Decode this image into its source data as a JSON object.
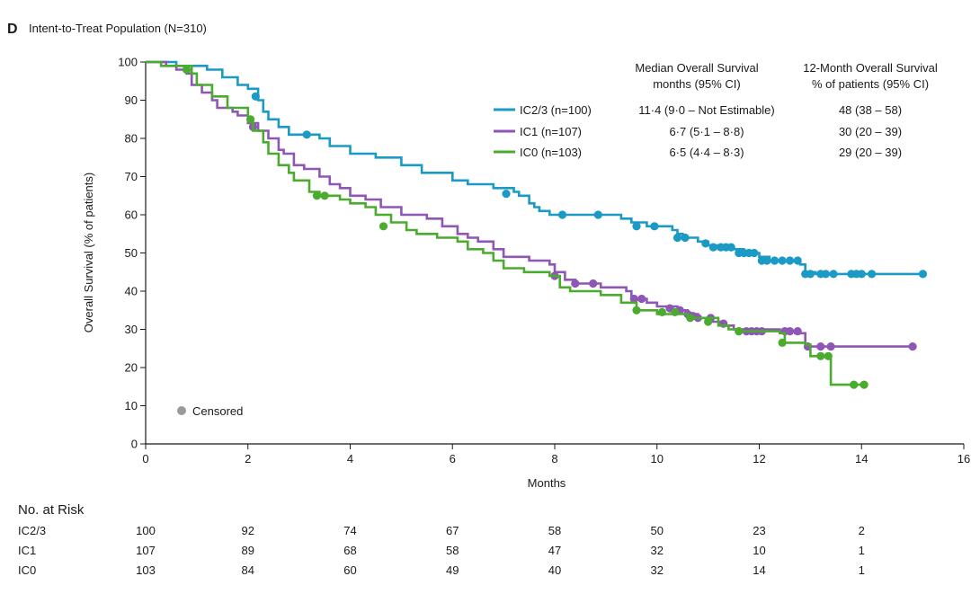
{
  "panel": {
    "letter": "D",
    "title": "Intent-to-Treat Population (N=310)"
  },
  "table_header": {
    "median_line1": "Median Overall Survival",
    "median_line2": "months (95% CI)",
    "twelve_line1": "12-Month Overall Survival",
    "twelve_line2": "% of patients (95% CI)"
  },
  "legend_rows": [
    {
      "label": "IC2/3 (n=100)",
      "median": "11·4 (9·0 – Not Estimable)",
      "twelve": "48 (38 – 58)",
      "color": "#1a9ac4"
    },
    {
      "label": "IC1 (n=107)",
      "median": "6·7 (5·1 – 8·8)",
      "twelve": "30 (20 – 39)",
      "color": "#8e57b5"
    },
    {
      "label": "IC0 (n=103)",
      "median": "6·5 (4·4 – 8·3)",
      "twelve": "29 (20 – 39)",
      "color": "#4bab2f"
    }
  ],
  "censored_label": "Censored",
  "risk_table": {
    "title": "No. at Risk",
    "rows": [
      {
        "label": "IC2/3",
        "values": [
          "100",
          "92",
          "74",
          "67",
          "58",
          "50",
          "23",
          "2"
        ]
      },
      {
        "label": "IC1",
        "values": [
          "107",
          "89",
          "68",
          "58",
          "47",
          "32",
          "10",
          "1"
        ]
      },
      {
        "label": "IC0",
        "values": [
          "103",
          "84",
          "60",
          "49",
          "40",
          "32",
          "14",
          "1"
        ]
      }
    ]
  },
  "chart_data": {
    "type": "line",
    "title": "",
    "xlabel": "Months",
    "ylabel": "Overall Survival (% of patients)",
    "xlim": [
      0,
      16
    ],
    "ylim": [
      0,
      100
    ],
    "x_ticks": [
      0,
      2,
      4,
      6,
      8,
      10,
      12,
      14,
      16
    ],
    "y_ticks": [
      0,
      10,
      20,
      30,
      40,
      50,
      60,
      70,
      80,
      90,
      100
    ],
    "grid": false,
    "legend": "top-right",
    "series": [
      {
        "name": "IC2/3 (n=100)",
        "color": "#1a9ac4",
        "steps": [
          [
            0,
            100
          ],
          [
            0.6,
            99
          ],
          [
            1.2,
            98
          ],
          [
            1.5,
            96
          ],
          [
            1.8,
            94
          ],
          [
            2.0,
            93
          ],
          [
            2.2,
            90
          ],
          [
            2.3,
            87
          ],
          [
            2.4,
            85
          ],
          [
            2.6,
            83
          ],
          [
            2.8,
            81
          ],
          [
            3.4,
            80
          ],
          [
            3.6,
            78
          ],
          [
            4.0,
            76
          ],
          [
            4.5,
            75
          ],
          [
            5.0,
            73
          ],
          [
            5.4,
            71
          ],
          [
            6.0,
            69
          ],
          [
            6.3,
            68
          ],
          [
            6.8,
            67
          ],
          [
            7.2,
            66
          ],
          [
            7.3,
            65
          ],
          [
            7.5,
            63
          ],
          [
            7.6,
            62
          ],
          [
            7.7,
            61
          ],
          [
            7.9,
            60
          ],
          [
            8.9,
            60
          ],
          [
            9.3,
            59
          ],
          [
            9.5,
            58
          ],
          [
            9.8,
            57
          ],
          [
            10.3,
            56
          ],
          [
            10.4,
            55
          ],
          [
            10.5,
            54
          ],
          [
            10.8,
            53
          ],
          [
            11.0,
            52
          ],
          [
            11.2,
            51
          ],
          [
            11.6,
            51
          ],
          [
            11.7,
            50
          ],
          [
            12.0,
            49
          ],
          [
            12.2,
            48
          ],
          [
            12.8,
            47
          ],
          [
            12.9,
            45
          ],
          [
            13.1,
            44.5
          ],
          [
            15.2,
            44.5
          ]
        ],
        "censored": [
          [
            2.15,
            91
          ],
          [
            3.15,
            81
          ],
          [
            7.05,
            65.5
          ],
          [
            8.15,
            60
          ],
          [
            8.85,
            60
          ],
          [
            9.6,
            57
          ],
          [
            9.95,
            57
          ],
          [
            10.4,
            54
          ],
          [
            10.55,
            54
          ],
          [
            10.95,
            52.5
          ],
          [
            11.1,
            51.5
          ],
          [
            11.25,
            51.5
          ],
          [
            11.35,
            51.5
          ],
          [
            11.45,
            51.5
          ],
          [
            11.6,
            50
          ],
          [
            11.7,
            50
          ],
          [
            11.8,
            50
          ],
          [
            11.9,
            50
          ],
          [
            12.05,
            48
          ],
          [
            12.15,
            48
          ],
          [
            12.3,
            48
          ],
          [
            12.45,
            48
          ],
          [
            12.6,
            48
          ],
          [
            12.75,
            48
          ],
          [
            12.9,
            44.5
          ],
          [
            13.0,
            44.5
          ],
          [
            13.2,
            44.5
          ],
          [
            13.3,
            44.5
          ],
          [
            13.45,
            44.5
          ],
          [
            13.8,
            44.5
          ],
          [
            13.9,
            44.5
          ],
          [
            14.0,
            44.5
          ],
          [
            14.2,
            44.5
          ],
          [
            15.2,
            44.5
          ]
        ]
      },
      {
        "name": "IC1 (n=107)",
        "color": "#8e57b5",
        "steps": [
          [
            0,
            100
          ],
          [
            0.4,
            99
          ],
          [
            0.6,
            98
          ],
          [
            0.8,
            97
          ],
          [
            0.9,
            94
          ],
          [
            1.1,
            92
          ],
          [
            1.3,
            90
          ],
          [
            1.4,
            88
          ],
          [
            1.7,
            87
          ],
          [
            1.8,
            86
          ],
          [
            2.0,
            84
          ],
          [
            2.2,
            82
          ],
          [
            2.4,
            80
          ],
          [
            2.6,
            77
          ],
          [
            2.7,
            76
          ],
          [
            2.9,
            73
          ],
          [
            3.1,
            72
          ],
          [
            3.4,
            70
          ],
          [
            3.6,
            68
          ],
          [
            3.8,
            67
          ],
          [
            4.0,
            65
          ],
          [
            4.3,
            64
          ],
          [
            4.6,
            62
          ],
          [
            5.0,
            60
          ],
          [
            5.5,
            59
          ],
          [
            5.8,
            57
          ],
          [
            6.1,
            55
          ],
          [
            6.3,
            54
          ],
          [
            6.5,
            53
          ],
          [
            6.8,
            51
          ],
          [
            7.0,
            49
          ],
          [
            7.5,
            48
          ],
          [
            7.9,
            47
          ],
          [
            8.0,
            45
          ],
          [
            8.2,
            43
          ],
          [
            8.4,
            42
          ],
          [
            8.9,
            41
          ],
          [
            9.4,
            40
          ],
          [
            9.5,
            38
          ],
          [
            9.8,
            37
          ],
          [
            10.0,
            36
          ],
          [
            10.4,
            35
          ],
          [
            10.6,
            34
          ],
          [
            10.8,
            33
          ],
          [
            11.0,
            32
          ],
          [
            11.3,
            31
          ],
          [
            11.5,
            30
          ],
          [
            12.4,
            29.5
          ],
          [
            12.7,
            29
          ],
          [
            12.9,
            25.5
          ],
          [
            15.0,
            25.5
          ]
        ],
        "censored": [
          [
            2.1,
            83
          ],
          [
            8.0,
            44
          ],
          [
            8.4,
            42
          ],
          [
            8.75,
            42
          ],
          [
            9.55,
            38
          ],
          [
            9.7,
            38
          ],
          [
            10.25,
            35.5
          ],
          [
            10.45,
            35
          ],
          [
            10.6,
            34
          ],
          [
            10.7,
            33.5
          ],
          [
            10.8,
            33
          ],
          [
            11.05,
            33
          ],
          [
            11.3,
            31.5
          ],
          [
            11.6,
            29.5
          ],
          [
            11.75,
            29.5
          ],
          [
            11.85,
            29.5
          ],
          [
            11.95,
            29.5
          ],
          [
            12.05,
            29.5
          ],
          [
            12.5,
            29.5
          ],
          [
            12.6,
            29.5
          ],
          [
            12.75,
            29.5
          ],
          [
            12.95,
            25.5
          ],
          [
            13.2,
            25.5
          ],
          [
            13.4,
            25.5
          ],
          [
            15.0,
            25.5
          ]
        ]
      },
      {
        "name": "IC0 (n=103)",
        "color": "#4bab2f",
        "steps": [
          [
            0,
            100
          ],
          [
            0.3,
            99
          ],
          [
            0.9,
            97
          ],
          [
            1.0,
            94
          ],
          [
            1.3,
            91
          ],
          [
            1.6,
            88
          ],
          [
            2.0,
            85
          ],
          [
            2.1,
            82
          ],
          [
            2.3,
            79
          ],
          [
            2.4,
            76
          ],
          [
            2.6,
            73
          ],
          [
            2.8,
            71
          ],
          [
            2.9,
            69
          ],
          [
            3.2,
            66
          ],
          [
            3.4,
            65
          ],
          [
            3.8,
            64
          ],
          [
            4.0,
            63
          ],
          [
            4.3,
            62
          ],
          [
            4.5,
            60
          ],
          [
            4.8,
            58
          ],
          [
            5.1,
            56
          ],
          [
            5.3,
            55
          ],
          [
            5.7,
            54
          ],
          [
            6.1,
            53
          ],
          [
            6.3,
            51
          ],
          [
            6.6,
            50
          ],
          [
            6.8,
            48
          ],
          [
            7.0,
            46
          ],
          [
            7.4,
            45
          ],
          [
            7.9,
            44
          ],
          [
            8.1,
            41
          ],
          [
            8.3,
            40
          ],
          [
            8.9,
            39
          ],
          [
            9.3,
            37
          ],
          [
            9.6,
            35
          ],
          [
            10.0,
            34
          ],
          [
            10.6,
            33
          ],
          [
            11.2,
            31
          ],
          [
            11.4,
            30
          ],
          [
            11.6,
            29.5
          ],
          [
            12.4,
            29
          ],
          [
            12.5,
            26.5
          ],
          [
            12.9,
            26
          ],
          [
            13.0,
            23
          ],
          [
            13.4,
            15.5
          ],
          [
            14.1,
            15.5
          ]
        ],
        "censored": [
          [
            0.8,
            98
          ],
          [
            2.05,
            85
          ],
          [
            3.35,
            65
          ],
          [
            3.5,
            65
          ],
          [
            4.65,
            57
          ],
          [
            9.6,
            35
          ],
          [
            10.1,
            34.5
          ],
          [
            10.35,
            34.5
          ],
          [
            10.65,
            33
          ],
          [
            11.0,
            32
          ],
          [
            11.6,
            29.5
          ],
          [
            12.45,
            26.5
          ],
          [
            13.2,
            23
          ],
          [
            13.35,
            23
          ],
          [
            13.85,
            15.5
          ],
          [
            14.05,
            15.5
          ]
        ]
      }
    ]
  }
}
